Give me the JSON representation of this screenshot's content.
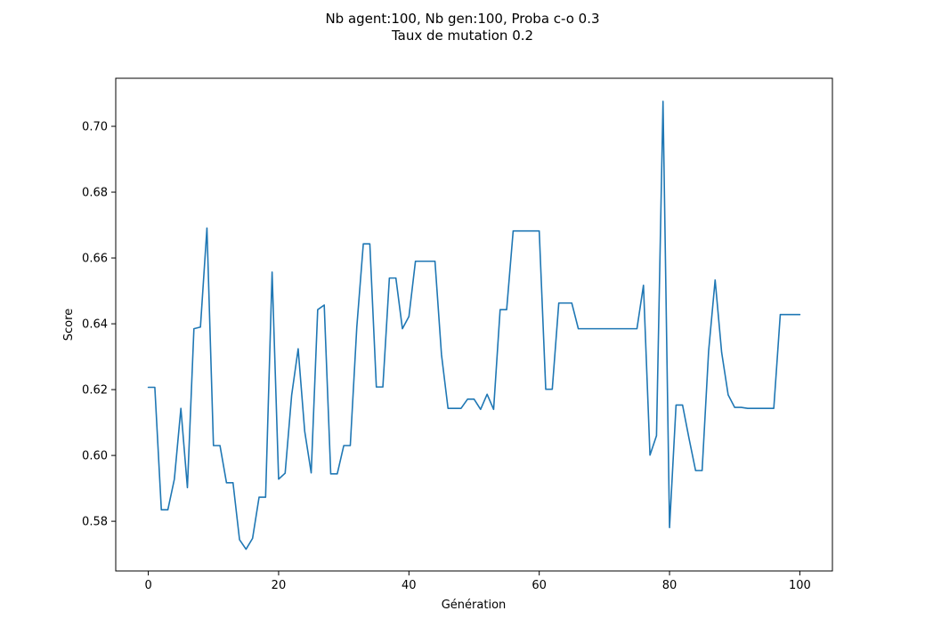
{
  "chart_data": {
    "type": "line",
    "title_lines": [
      "Nb agent:100, Nb gen:100, Proba c-o 0.3",
      "Taux de mutation 0.2"
    ],
    "xlabel": "Génération",
    "ylabel": "Score",
    "xlim": [
      -5,
      105
    ],
    "ylim": [
      0.5649,
      0.7146
    ],
    "xticks": [
      0,
      20,
      40,
      60,
      80,
      100
    ],
    "yticks": [
      0.58,
      0.6,
      0.62,
      0.64,
      0.66,
      0.68,
      0.7
    ],
    "grid": false,
    "line_color": "#1f77b4",
    "series": [
      {
        "x": [
          0,
          1,
          2,
          3,
          4,
          5,
          6,
          7,
          8,
          9,
          10,
          11,
          12,
          13,
          14,
          15,
          16,
          17,
          18,
          19,
          20,
          21,
          22,
          23,
          24,
          25,
          26,
          27,
          28,
          29,
          30,
          31,
          32,
          33,
          34,
          35,
          36,
          37,
          38,
          39,
          40,
          41,
          42,
          43,
          44,
          45,
          46,
          47,
          48,
          49,
          50,
          51,
          52,
          53,
          54,
          55,
          56,
          57,
          58,
          59,
          60,
          61,
          62,
          63,
          64,
          65,
          66,
          67,
          68,
          69,
          70,
          71,
          72,
          73,
          74,
          75,
          76,
          77,
          78,
          79,
          80,
          81,
          82,
          83,
          84,
          85,
          86,
          87,
          88,
          89,
          90,
          91,
          92,
          93,
          94,
          95,
          96,
          97,
          98,
          99,
          100
        ],
        "y": [
          0.6207,
          0.6207,
          0.5835,
          0.5835,
          0.5928,
          0.6143,
          0.5902,
          0.6385,
          0.639,
          0.6691,
          0.603,
          0.603,
          0.5917,
          0.5917,
          0.5744,
          0.5715,
          0.5748,
          0.5873,
          0.5873,
          0.6557,
          0.5928,
          0.5946,
          0.6183,
          0.6324,
          0.6074,
          0.5947,
          0.6443,
          0.6457,
          0.5944,
          0.5944,
          0.603,
          0.603,
          0.639,
          0.6643,
          0.6643,
          0.6208,
          0.6208,
          0.6539,
          0.6539,
          0.6385,
          0.6422,
          0.659,
          0.659,
          0.659,
          0.659,
          0.6306,
          0.6143,
          0.6143,
          0.6143,
          0.6171,
          0.6171,
          0.614,
          0.6186,
          0.614,
          0.6443,
          0.6443,
          0.6682,
          0.6682,
          0.6682,
          0.6682,
          0.6682,
          0.6201,
          0.6201,
          0.6463,
          0.6463,
          0.6463,
          0.6385,
          0.6385,
          0.6385,
          0.6385,
          0.6385,
          0.6385,
          0.6385,
          0.6385,
          0.6385,
          0.6385,
          0.6517,
          0.6001,
          0.606,
          0.7076,
          0.5781,
          0.6153,
          0.6153,
          0.6051,
          0.5954,
          0.5954,
          0.6317,
          0.6533,
          0.6313,
          0.6184,
          0.6146,
          0.6146,
          0.6143,
          0.6143,
          0.6143,
          0.6143,
          0.6143,
          0.6428,
          0.6428,
          0.6428,
          0.6428
        ]
      }
    ]
  }
}
